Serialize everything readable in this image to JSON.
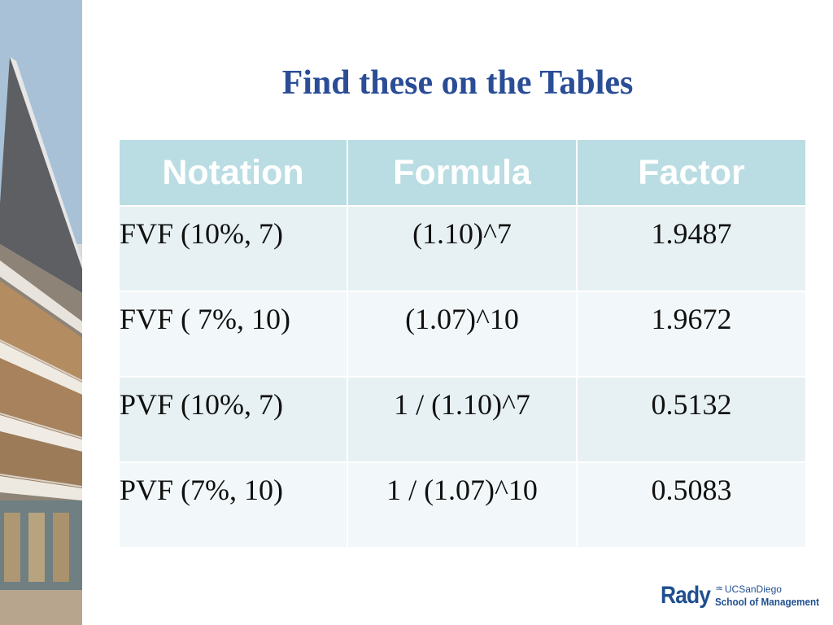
{
  "slide": {
    "title": "Find these on the Tables"
  },
  "table": {
    "headers": {
      "notation": "Notation",
      "formula": "Formula",
      "factor": "Factor"
    },
    "rows": [
      {
        "notation": "FVF (10%, 7)",
        "formula": "(1.10)^7",
        "factor": "1.9487"
      },
      {
        "notation": "FVF ( 7%, 10)",
        "formula": "(1.07)^10",
        "factor": "1.9672"
      },
      {
        "notation": "PVF (10%, 7)",
        "formula": "1 / (1.10)^7",
        "factor": "0.5132"
      },
      {
        "notation": "PVF (7%, 10)",
        "formula": "1 / (1.07)^10",
        "factor": "0.5083"
      }
    ]
  },
  "logo": {
    "rady": "Rady",
    "ucsd": "UCSanDiego",
    "school": "School of Management"
  },
  "colors": {
    "title": "#2a4d96",
    "header_bg": "#b9dde2",
    "row_odd": "#e7f1f3",
    "row_even": "#f2f8f9",
    "logo": "#1f4f8f"
  }
}
